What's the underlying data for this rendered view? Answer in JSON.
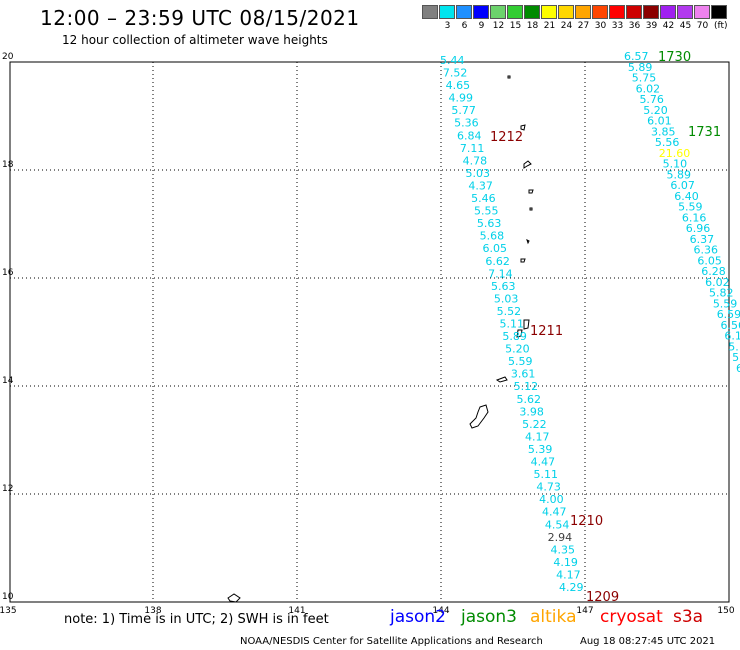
{
  "title": "12:00 – 23:59 UTC 08/15/2021",
  "subtitle": "12 hour collection of altimeter wave heights",
  "colorbar": {
    "colors": [
      "#808080",
      "#00e5ee",
      "#1e90ff",
      "#0000ff",
      "#6cd36c",
      "#32cd32",
      "#008b00",
      "#ffff00",
      "#ffd700",
      "#ffa500",
      "#ff4500",
      "#ff0000",
      "#cd0000",
      "#8b0000",
      "#a020f0",
      "#b23aee",
      "#ee82ee",
      "#000000"
    ],
    "labels": [
      "3",
      "6",
      "9",
      "12",
      "15",
      "18",
      "21",
      "24",
      "27",
      "30",
      "33",
      "36",
      "39",
      "42",
      "45",
      "70"
    ],
    "unit": "(ft)"
  },
  "axes": {
    "x_ticks": [
      "135",
      "138",
      "141",
      "144",
      "147",
      "150"
    ],
    "y_ticks": [
      "20",
      "18",
      "16",
      "14",
      "12",
      "10"
    ]
  },
  "passes": [
    {
      "id": "1212",
      "color": "#8b0000"
    },
    {
      "id": "1211",
      "color": "#8b0000"
    },
    {
      "id": "1210",
      "color": "#8b0000"
    },
    {
      "id": "1209",
      "color": "#8b0000"
    },
    {
      "id": "1730",
      "color": "#008b00"
    },
    {
      "id": "1731",
      "color": "#008b00"
    }
  ],
  "track1": [
    "5.44",
    "7.52",
    "4.65",
    "4.99",
    "5.77",
    "5.36",
    "6.84",
    "7.11",
    "4.78",
    "5.03",
    "4.37",
    "5.46",
    "5.55",
    "5.63",
    "5.68",
    "6.05",
    "6.62",
    "7.14",
    "5.63",
    "5.03",
    "5.52",
    "5.11",
    "5.89",
    "5.20",
    "5.59",
    "3.61",
    "5.12",
    "5.62",
    "3.98",
    "5.22",
    "4.17",
    "5.39",
    "4.47",
    "5.11",
    "4.73",
    "4.00",
    "4.47",
    "4.54",
    "2.94",
    "4.35",
    "4.19",
    "4.17",
    "4.29"
  ],
  "track2": [
    "6.57",
    "5.89",
    "5.75",
    "6.02",
    "5.76",
    "5.20",
    "6.01",
    "3.85",
    "5.56",
    "21.60",
    "5.10",
    "5.89",
    "6.07",
    "6.40",
    "5.59",
    "6.16",
    "6.96",
    "6.37",
    "6.36",
    "6.05",
    "6.28",
    "6.02",
    "5.82",
    "5.59",
    "6.59",
    "6.56",
    "6.1",
    "5.",
    "5.",
    "6"
  ],
  "legend": [
    {
      "name": "jason2",
      "color": "#0000ff"
    },
    {
      "name": "jason3",
      "color": "#008b00"
    },
    {
      "name": "altika",
      "color": "#ffa500"
    },
    {
      "name": "cryosat",
      "color": "#ff0000"
    },
    {
      "name": "s3a",
      "color": "#cd0000"
    }
  ],
  "note": "note: 1) Time is in UTC; 2) SWH is in feet",
  "credit": "NOAA/NESDIS Center for Satellite Applications and Research",
  "stamp": "Aug 18 08:27:45 UTC 2021"
}
